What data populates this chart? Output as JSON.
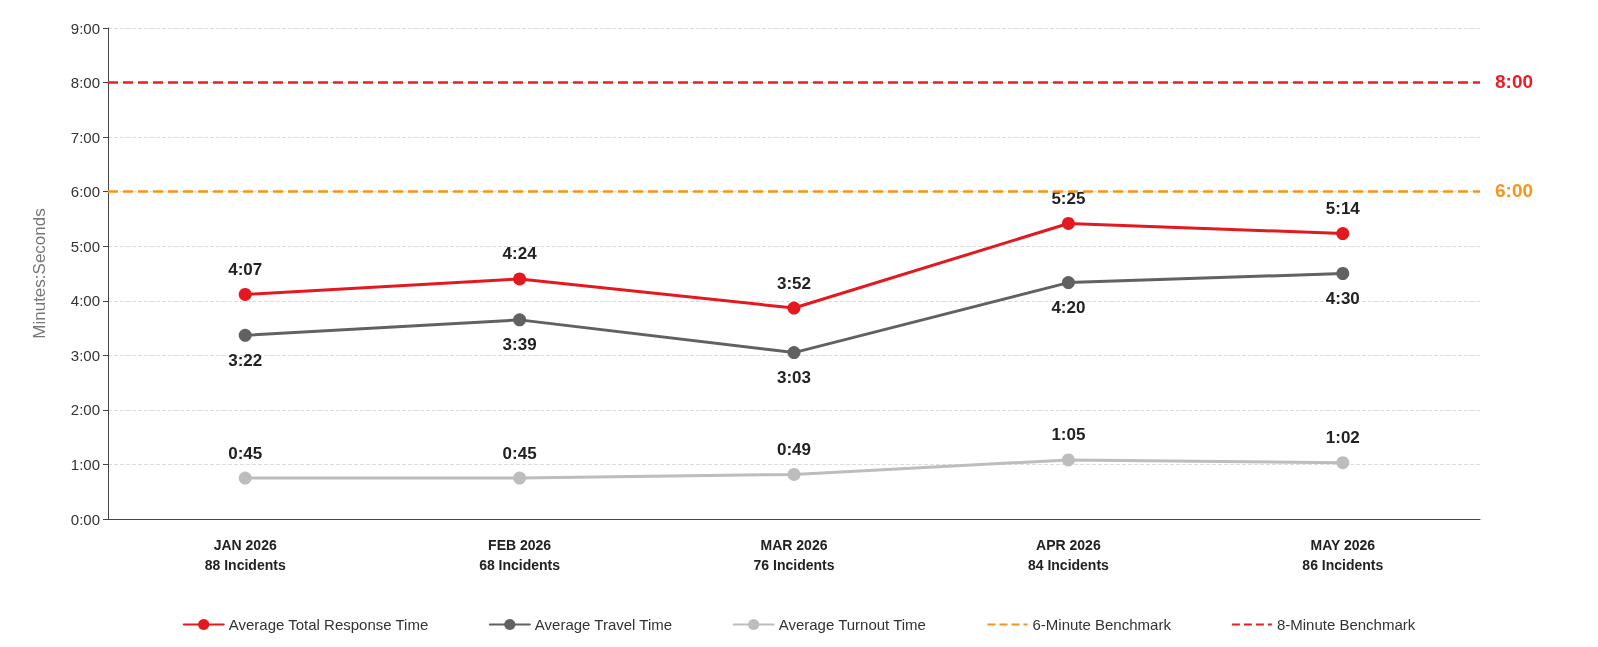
{
  "chart_data": {
    "type": "line",
    "ylabel": "Minutes:Seconds",
    "categories": [
      "JAN 2026\n88 Incidents",
      "FEB 2026\n68 Incidents",
      "MAR 2026\n76 Incidents",
      "APR 2026\n84 Incidents",
      "MAY 2026\n86 Incidents"
    ],
    "series": [
      {
        "name": "Average Total Response Time",
        "color": "#e3191f",
        "values": [
          4.117,
          4.4,
          3.867,
          5.417,
          5.233
        ],
        "value_labels": [
          "4:07",
          "4:24",
          "3:52",
          "5:25",
          "5:14"
        ]
      },
      {
        "name": "Average Travel Time",
        "color": "#616161",
        "values": [
          3.367,
          3.65,
          3.05,
          4.333,
          4.5
        ],
        "value_labels": [
          "3:22",
          "3:39",
          "3:03",
          "4:20",
          "4:30"
        ]
      },
      {
        "name": "Average Turnout Time",
        "color": "#bdbdbd",
        "values": [
          0.75,
          0.75,
          0.817,
          1.083,
          1.033
        ],
        "value_labels": [
          "0:45",
          "0:45",
          "0:49",
          "1:05",
          "1:02"
        ]
      }
    ],
    "ylim": [
      0,
      9
    ],
    "yticks": [
      {
        "value": 0,
        "label": "0:00"
      },
      {
        "value": 1,
        "label": "1:00"
      },
      {
        "value": 2,
        "label": "2:00"
      },
      {
        "value": 3,
        "label": "3:00"
      },
      {
        "value": 4,
        "label": "4:00"
      },
      {
        "value": 5,
        "label": "5:00"
      },
      {
        "value": 6,
        "label": "6:00"
      },
      {
        "value": 7,
        "label": "7:00"
      },
      {
        "value": 8,
        "label": "8:00"
      },
      {
        "value": 9,
        "label": "9:00"
      }
    ],
    "ref_lines": [
      {
        "axis": "y",
        "value": 6,
        "label": "6-Minute Benchmark",
        "color": "#f7941d",
        "line_style": "dashed"
      },
      {
        "axis": "y",
        "value": 8,
        "label": "8-Minute Benchmark",
        "color": "#ee1c25",
        "line_style": "dashed"
      }
    ],
    "annotations": [
      "6:00",
      "8:00"
    ],
    "grid": "y",
    "legend": "bottom",
    "marker": "circle",
    "line_style": "solid"
  }
}
